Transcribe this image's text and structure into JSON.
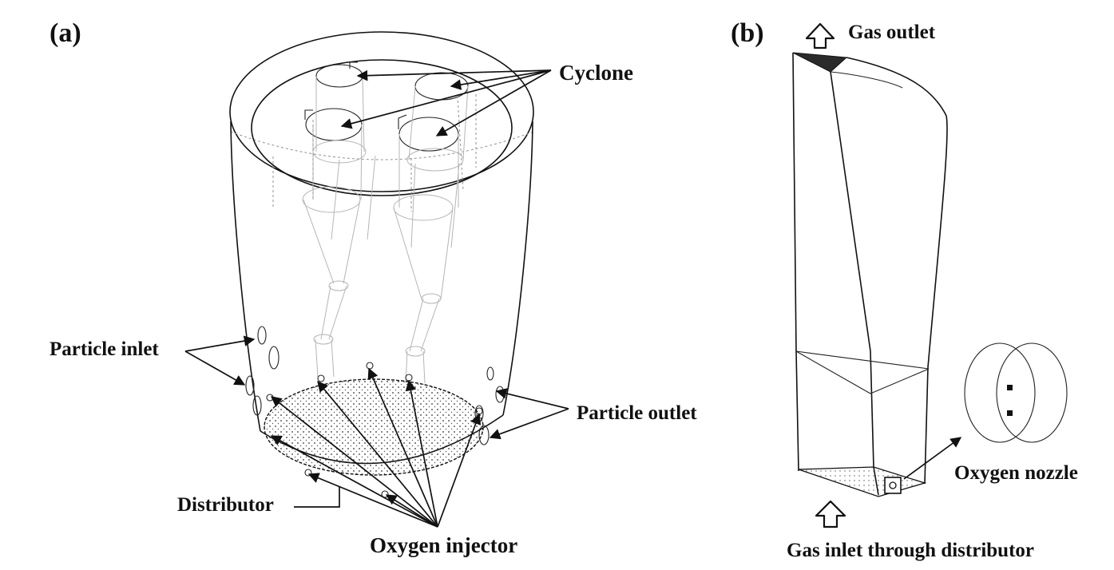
{
  "panels": {
    "a": {
      "label": "(a)",
      "callouts": {
        "cyclone": "Cyclone",
        "particle_inlet": "Particle inlet",
        "particle_outlet": "Particle outlet",
        "distributor": "Distributor",
        "oxygen_injector": "Oxygen injector"
      }
    },
    "b": {
      "label": "(b)",
      "callouts": {
        "gas_outlet": "Gas outlet",
        "oxygen_nozzle": "Oxygen nozzle",
        "gas_inlet": "Gas inlet through distributor"
      }
    }
  },
  "colors": {
    "line": "#111111",
    "hidden_line": "#9a9a9a",
    "background": "#ffffff"
  },
  "icons": [
    "up-arrow-outline-icon"
  ]
}
